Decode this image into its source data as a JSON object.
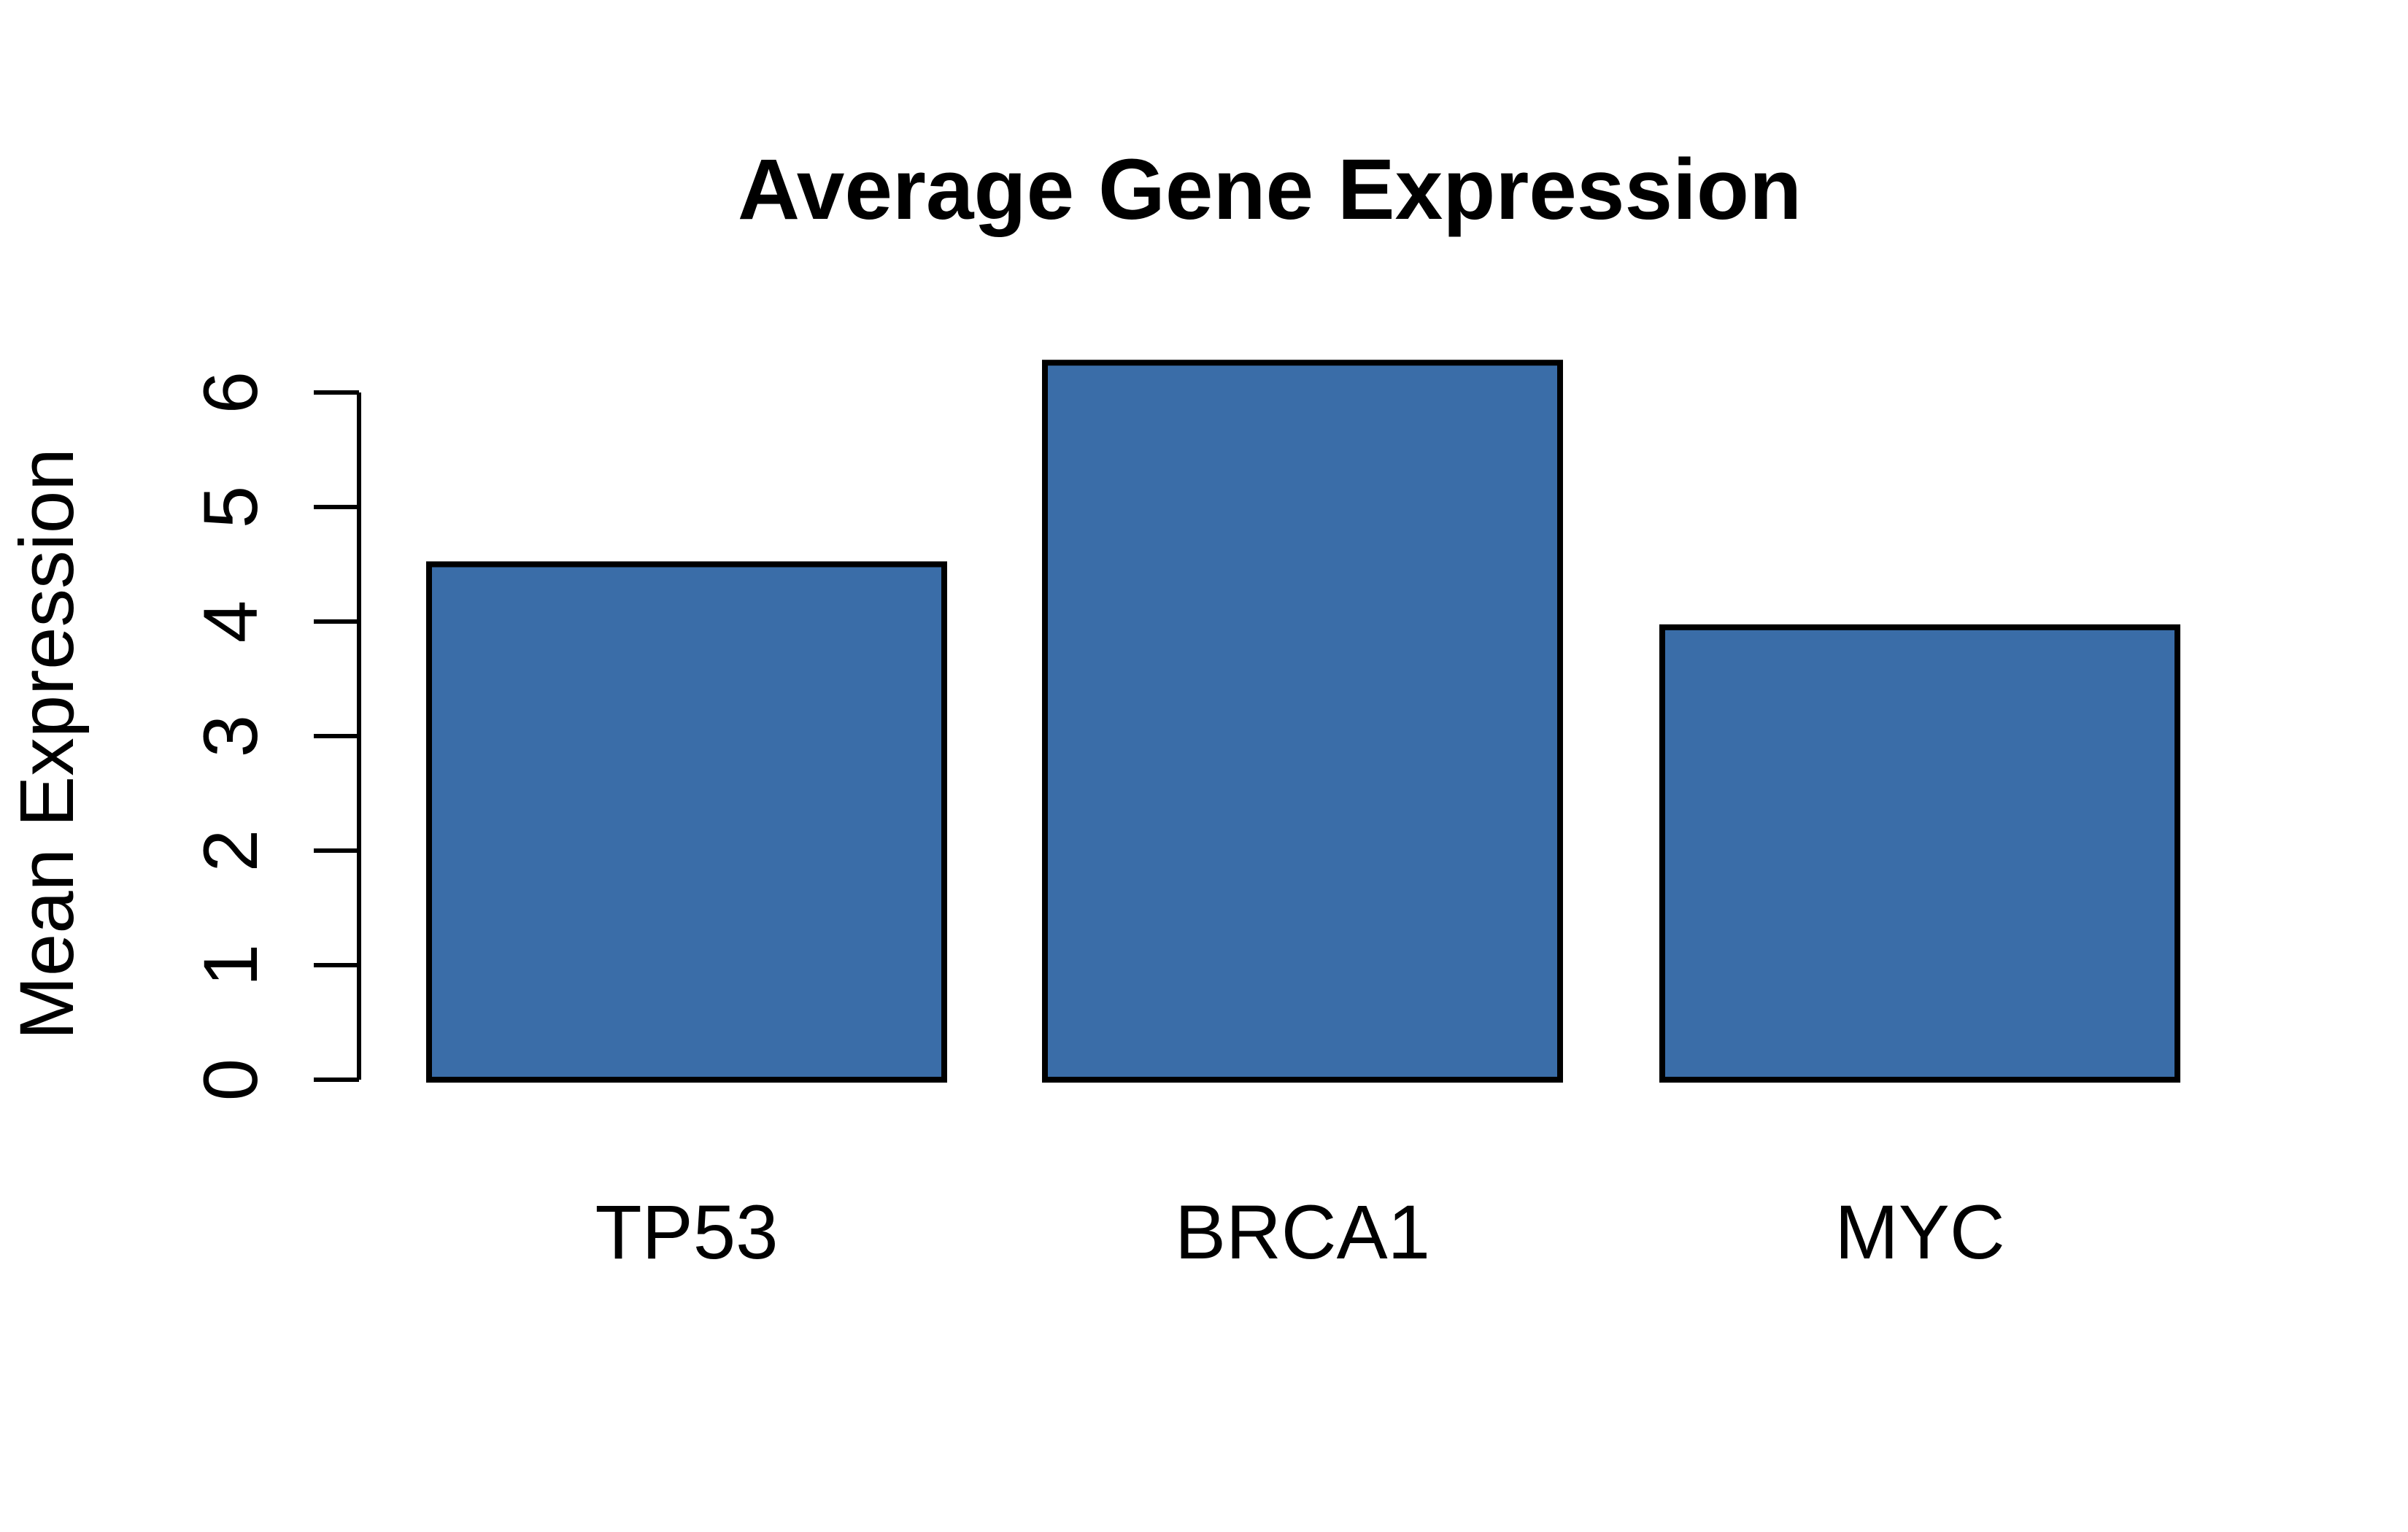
{
  "chart_data": {
    "type": "bar",
    "title": "Average Gene Expression",
    "ylabel": "Mean Expression",
    "xlabel": "",
    "categories": [
      "TP53",
      "BRCA1",
      "MYC"
    ],
    "values": [
      4.5,
      6.26,
      3.95
    ],
    "yticks": [
      0,
      1,
      2,
      3,
      4,
      5,
      6
    ],
    "ylim": [
      0,
      6.5
    ],
    "grid": false,
    "legend": false,
    "bar_gap_ratio": 0.2,
    "colors": {
      "bar_fill": "#3A6DA8",
      "bar_border": "#000000",
      "axis": "#000000",
      "text": "#000000",
      "background": "#FFFFFF"
    }
  }
}
